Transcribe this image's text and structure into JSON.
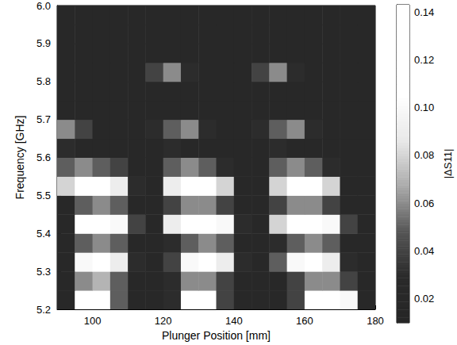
{
  "chart_data": {
    "type": "heatmap",
    "x_label": "Plunger Position [mm]",
    "y_label": "Frequency [GHz]",
    "x": [
      92.5,
      97.5,
      102.5,
      107.5,
      112.5,
      117.5,
      122.5,
      127.5,
      132.5,
      137.5,
      142.5,
      147.5,
      152.5,
      157.5,
      162.5,
      167.5,
      172.5,
      177.5
    ],
    "y": [
      5.225,
      5.275,
      5.325,
      5.375,
      5.425,
      5.475,
      5.525,
      5.575,
      5.625,
      5.675,
      5.725,
      5.775,
      5.825,
      5.875,
      5.925,
      5.975
    ],
    "values": [
      [
        0.02,
        0.13,
        0.12,
        0.05,
        0.02,
        0.02,
        0.03,
        0.12,
        0.11,
        0.04,
        0.02,
        0.02,
        0.02,
        0.04,
        0.11,
        0.13,
        0.1,
        0.02
      ],
      [
        0.02,
        0.06,
        0.07,
        0.05,
        0.02,
        0.02,
        0.03,
        0.06,
        0.06,
        0.04,
        0.02,
        0.02,
        0.02,
        0.04,
        0.06,
        0.06,
        0.04,
        0.02
      ],
      [
        0.02,
        0.1,
        0.11,
        0.09,
        0.03,
        0.02,
        0.04,
        0.1,
        0.11,
        0.09,
        0.03,
        0.02,
        0.05,
        0.1,
        0.11,
        0.09,
        0.03,
        0.02
      ],
      [
        0.02,
        0.05,
        0.06,
        0.05,
        0.02,
        0.02,
        0.03,
        0.05,
        0.06,
        0.05,
        0.02,
        0.02,
        0.03,
        0.05,
        0.06,
        0.05,
        0.02,
        0.02
      ],
      [
        0.02,
        0.11,
        0.12,
        0.1,
        0.04,
        0.02,
        0.09,
        0.12,
        0.12,
        0.1,
        0.03,
        0.02,
        0.08,
        0.12,
        0.12,
        0.1,
        0.04,
        0.02
      ],
      [
        0.02,
        0.05,
        0.06,
        0.05,
        0.02,
        0.02,
        0.04,
        0.06,
        0.06,
        0.04,
        0.02,
        0.02,
        0.04,
        0.06,
        0.06,
        0.04,
        0.02,
        0.02
      ],
      [
        0.08,
        0.11,
        0.11,
        0.09,
        0.03,
        0.02,
        0.09,
        0.11,
        0.11,
        0.08,
        0.02,
        0.02,
        0.08,
        0.11,
        0.11,
        0.08,
        0.02,
        0.02
      ],
      [
        0.05,
        0.06,
        0.05,
        0.04,
        0.02,
        0.02,
        0.05,
        0.06,
        0.05,
        0.03,
        0.02,
        0.02,
        0.05,
        0.06,
        0.05,
        0.03,
        0.02,
        0.02
      ],
      [
        0.03,
        0.02,
        0.02,
        0.02,
        0.02,
        0.02,
        0.03,
        0.02,
        0.02,
        0.02,
        0.02,
        0.02,
        0.03,
        0.02,
        0.02,
        0.02,
        0.02,
        0.02
      ],
      [
        0.06,
        0.04,
        0.02,
        0.02,
        0.02,
        0.03,
        0.05,
        0.06,
        0.03,
        0.02,
        0.02,
        0.03,
        0.05,
        0.06,
        0.03,
        0.02,
        0.02,
        0.02
      ],
      [
        0.02,
        0.02,
        0.02,
        0.02,
        0.02,
        0.02,
        0.02,
        0.02,
        0.02,
        0.02,
        0.02,
        0.02,
        0.02,
        0.02,
        0.02,
        0.02,
        0.02,
        0.02
      ],
      [
        0.02,
        0.02,
        0.02,
        0.02,
        0.02,
        0.02,
        0.02,
        0.02,
        0.02,
        0.02,
        0.02,
        0.02,
        0.02,
        0.02,
        0.02,
        0.02,
        0.02,
        0.02
      ],
      [
        0.02,
        0.02,
        0.02,
        0.02,
        0.02,
        0.04,
        0.06,
        0.03,
        0.02,
        0.02,
        0.02,
        0.04,
        0.06,
        0.03,
        0.02,
        0.02,
        0.02,
        0.02
      ],
      [
        0.02,
        0.02,
        0.02,
        0.02,
        0.02,
        0.02,
        0.02,
        0.02,
        0.02,
        0.02,
        0.02,
        0.02,
        0.02,
        0.02,
        0.02,
        0.02,
        0.02,
        0.02
      ],
      [
        0.02,
        0.02,
        0.02,
        0.02,
        0.02,
        0.02,
        0.02,
        0.02,
        0.02,
        0.02,
        0.02,
        0.02,
        0.02,
        0.02,
        0.02,
        0.02,
        0.02,
        0.02
      ],
      [
        0.02,
        0.02,
        0.02,
        0.02,
        0.02,
        0.02,
        0.02,
        0.02,
        0.02,
        0.02,
        0.02,
        0.02,
        0.02,
        0.02,
        0.02,
        0.02,
        0.02,
        0.02
      ]
    ],
    "xlim": [
      90,
      180
    ],
    "xticks": [
      100,
      120,
      140,
      160,
      180
    ],
    "ylim": [
      5.2,
      6.0
    ],
    "yticks": [
      5.2,
      5.3,
      5.4,
      5.5,
      5.6,
      5.7,
      5.8,
      5.9,
      {
        "value": 6,
        "label": "6.0"
      }
    ],
    "colorbar_label": "|ΔS11|",
    "colorbar_range": [
      0.01,
      0.143
    ],
    "colorbar_ticks": [
      0.02,
      0.04,
      0.06,
      0.08,
      {
        "value": 0.1,
        "label": "0.10"
      },
      0.12,
      0.14
    ]
  }
}
